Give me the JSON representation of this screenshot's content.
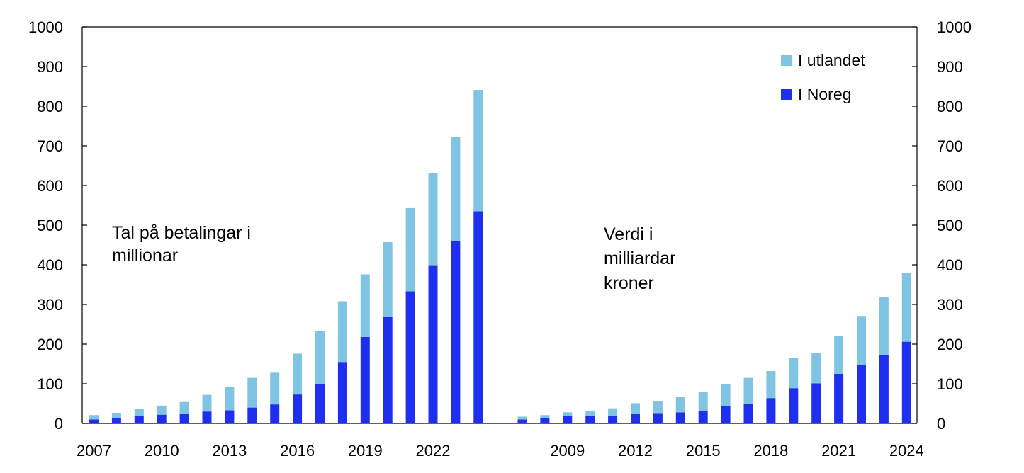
{
  "chart_data": {
    "type": "bar",
    "stacked": true,
    "ylim": [
      0,
      1000
    ],
    "yticks": [
      0,
      100,
      200,
      300,
      400,
      500,
      600,
      700,
      800,
      900,
      1000
    ],
    "right_yticks": [
      0,
      100,
      200,
      300,
      400,
      500,
      600,
      700,
      800,
      900,
      1000
    ],
    "colors": {
      "I Noreg": "#1f2ff0",
      "I utlandet": "#7fc4e3"
    },
    "legend": {
      "position": "top-right",
      "entries": [
        {
          "label": "I utlandet",
          "color": "#7fc4e3"
        },
        {
          "label": "I Noreg",
          "color": "#1f2ff0"
        }
      ]
    },
    "panels": [
      {
        "annotation": [
          "Tal på betalingar i",
          "millionar"
        ],
        "x": [
          2007,
          2008,
          2009,
          2010,
          2011,
          2012,
          2013,
          2014,
          2015,
          2016,
          2017,
          2018,
          2019,
          2020,
          2021,
          2022,
          2023,
          2024
        ],
        "x_tick_labels": [
          "2007",
          "2010",
          "2013",
          "2016",
          "2019",
          "2022"
        ],
        "series": [
          {
            "name": "I Noreg",
            "values": [
              10,
              13,
              20,
              22,
              25,
              30,
              33,
              40,
              48,
              73,
              99,
              155,
              218,
              268,
              333,
              399,
              460,
              535
            ]
          },
          {
            "name": "I utlandet",
            "values": [
              11,
              14,
              16,
              23,
              29,
              42,
              60,
              75,
              80,
              103,
              134,
              153,
              158,
              189,
              210,
              233,
              262,
              306
            ]
          }
        ]
      },
      {
        "annotation": [
          "Verdi i",
          "milliardar",
          "kroner"
        ],
        "x": [
          2007,
          2008,
          2009,
          2010,
          2011,
          2012,
          2013,
          2014,
          2015,
          2016,
          2017,
          2018,
          2019,
          2020,
          2021,
          2022,
          2023,
          2024
        ],
        "x_tick_labels": [
          "2009",
          "2012",
          "2015",
          "2018",
          "2021",
          "2024"
        ],
        "series": [
          {
            "name": "I Noreg",
            "values": [
              10,
              13,
              18,
              20,
              19,
              24,
              26,
              28,
              32,
              43,
              50,
              64,
              89,
              101,
              125,
              148,
              173,
              206
            ]
          },
          {
            "name": "I utlandet",
            "values": [
              7,
              8,
              10,
              11,
              19,
              27,
              31,
              39,
              47,
              56,
              65,
              68,
              76,
              76,
              96,
              123,
              146,
              174
            ]
          }
        ]
      }
    ]
  }
}
